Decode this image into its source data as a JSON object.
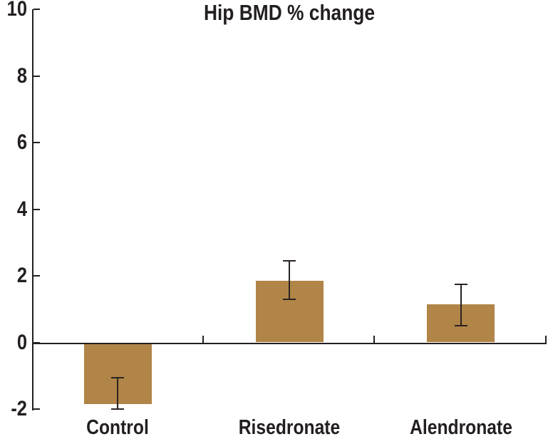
{
  "figure": {
    "background_color": "#ffffff",
    "text_color": "#231f20"
  },
  "chart_data": {
    "type": "bar",
    "title": "Hip BMD % change",
    "categories": [
      "Control",
      "Risedronate",
      "Alendronate"
    ],
    "values": [
      -1.8,
      1.85,
      1.15
    ],
    "error_low": [
      -2.0,
      1.3,
      0.5
    ],
    "error_high": [
      -1.05,
      2.45,
      1.75
    ],
    "ylim": [
      -2,
      10
    ],
    "yticks": [
      10,
      8,
      6,
      4,
      2,
      0,
      -2
    ],
    "ytick_labels": [
      "10",
      "8",
      "6",
      "4",
      "2",
      "0",
      "-2"
    ],
    "xlabel": "",
    "ylabel": "",
    "grid": false,
    "legend": false,
    "bar_color": "#b18547",
    "axis_color": "#231f20"
  }
}
